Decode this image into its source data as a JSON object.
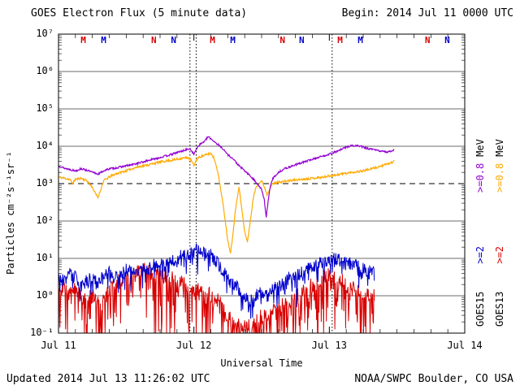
{
  "title": "GOES Electron Flux (5 minute data)",
  "begin_label": "Begin: 2014 Jul 11 0000 UTC",
  "updated_label": "Updated 2014 Jul 13 11:26:02 UTC",
  "source_label": "NOAA/SWPC Boulder, CO USA",
  "x_axis": {
    "label": "Universal Time",
    "ticks": [
      "Jul 11",
      "Jul 12",
      "Jul 13",
      "Jul 14"
    ],
    "hours_span": 72
  },
  "y_axis": {
    "label": "Particles cm⁻²s⁻¹sr⁻¹",
    "tick_labels": [
      "10⁷",
      "10⁶",
      "10⁵",
      "10⁴",
      "10³",
      "10²",
      "10¹",
      "10⁰",
      "10⁻¹"
    ],
    "max_exp": 7,
    "min_exp": -1,
    "threshold_exp": 3
  },
  "right_labels": {
    "inner": {
      "satellite": "GOES15",
      "e2": ">=2",
      "e08": ">=0.8",
      "mev": "MeV",
      "e2_color": "#0000CC",
      "e08_color": "#9400D3"
    },
    "outer": {
      "satellite": "GOES13",
      "e2": ">=2",
      "e08": ">=0.8",
      "mev": "MeV",
      "e2_color": "#D80000",
      "e08_color": "#FFAA00"
    }
  },
  "top_markers": [
    {
      "t": 4.5,
      "label": "M",
      "color": "#D80000"
    },
    {
      "t": 8.1,
      "label": "M",
      "color": "#0000CC"
    },
    {
      "t": 17.0,
      "label": "N",
      "color": "#D80000"
    },
    {
      "t": 20.5,
      "label": "N",
      "color": "#0000CC"
    },
    {
      "t": 27.4,
      "label": "M",
      "color": "#D80000"
    },
    {
      "t": 31.0,
      "label": "M",
      "color": "#0000CC"
    },
    {
      "t": 39.8,
      "label": "N",
      "color": "#D80000"
    },
    {
      "t": 43.2,
      "label": "N",
      "color": "#0000CC"
    },
    {
      "t": 50.0,
      "label": "M",
      "color": "#D80000"
    },
    {
      "t": 53.6,
      "label": "M",
      "color": "#0000CC"
    },
    {
      "t": 65.5,
      "label": "N",
      "color": "#D80000"
    },
    {
      "t": 69.0,
      "label": "N",
      "color": "#0000CC"
    }
  ],
  "chart_data": {
    "type": "line",
    "title": "GOES Electron Flux (5 minute data)",
    "x_unit": "hours from 2014 Jul 11 0000 UTC",
    "y_unit": "particles cm^-2 s^-1 sr^-1",
    "y_scale": "log",
    "ylim_exp": [
      -1,
      7
    ],
    "threshold": 1000,
    "dotted_vlines_hours": [
      23.3,
      24.4,
      48.5
    ],
    "series": [
      {
        "name": "GOES13 >=2 MeV",
        "color": "#D80000",
        "width": 1,
        "seed": 7,
        "noise": {
          "jitter": 0.22,
          "spike_prob": 0.5,
          "spike_depth": 2.4
        },
        "points": [
          [
            0,
            1.5
          ],
          [
            1,
            2
          ],
          [
            2,
            1
          ],
          [
            3,
            1.5
          ],
          [
            4,
            1
          ],
          [
            5,
            0.8
          ],
          [
            6,
            1
          ],
          [
            7,
            0.7
          ],
          [
            8,
            1.2
          ],
          [
            9,
            1.5
          ],
          [
            10,
            2
          ],
          [
            11,
            2.5
          ],
          [
            12,
            3
          ],
          [
            13,
            3.5
          ],
          [
            14,
            4
          ],
          [
            15,
            4.5
          ],
          [
            16,
            5
          ],
          [
            17,
            4.5
          ],
          [
            18,
            4
          ],
          [
            19,
            3.5
          ],
          [
            20,
            3
          ],
          [
            21,
            2.5
          ],
          [
            22,
            2
          ],
          [
            23,
            2
          ],
          [
            24,
            1.5
          ],
          [
            25,
            1.5
          ],
          [
            26,
            1.2
          ],
          [
            27,
            1
          ],
          [
            28,
            0.8
          ],
          [
            29,
            0.5
          ],
          [
            30,
            0.3
          ],
          [
            31,
            0.2
          ],
          [
            32,
            0.15
          ],
          [
            33,
            0.15
          ],
          [
            34,
            0.2
          ],
          [
            35,
            0.2
          ],
          [
            36,
            0.3
          ],
          [
            37,
            0.3
          ],
          [
            38,
            0.4
          ],
          [
            39,
            0.5
          ],
          [
            40,
            0.6
          ],
          [
            41,
            0.8
          ],
          [
            42,
            1
          ],
          [
            43,
            1.2
          ],
          [
            44,
            1.5
          ],
          [
            45,
            2
          ],
          [
            46,
            2.5
          ],
          [
            47,
            3
          ],
          [
            48,
            3.5
          ],
          [
            49,
            3
          ],
          [
            50,
            2.5
          ],
          [
            51,
            2
          ],
          [
            52,
            1.8
          ],
          [
            53,
            1.5
          ],
          [
            54,
            1.2
          ],
          [
            55,
            1
          ],
          [
            56,
            1
          ]
        ]
      },
      {
        "name": "GOES15 >=2 MeV",
        "color": "#0000CC",
        "width": 1,
        "seed": 3,
        "noise": {
          "jitter": 0.18,
          "spike_prob": 0.3,
          "spike_depth": 0.7
        },
        "points": [
          [
            0,
            3
          ],
          [
            1,
            2.5
          ],
          [
            2,
            4
          ],
          [
            3,
            3
          ],
          [
            4,
            2
          ],
          [
            5,
            2.5
          ],
          [
            6,
            3
          ],
          [
            7,
            2
          ],
          [
            8,
            3.5
          ],
          [
            9,
            4
          ],
          [
            10,
            3
          ],
          [
            11,
            4
          ],
          [
            12,
            5
          ],
          [
            13,
            4.5
          ],
          [
            14,
            5
          ],
          [
            15,
            6
          ],
          [
            16,
            5
          ],
          [
            17,
            7
          ],
          [
            18,
            8
          ],
          [
            19,
            7
          ],
          [
            20,
            9
          ],
          [
            21,
            10
          ],
          [
            22,
            12
          ],
          [
            23,
            13
          ],
          [
            24,
            15
          ],
          [
            25,
            17
          ],
          [
            26,
            15
          ],
          [
            27,
            12
          ],
          [
            28,
            8
          ],
          [
            29,
            5
          ],
          [
            30,
            3
          ],
          [
            31,
            2
          ],
          [
            32,
            1.5
          ],
          [
            33,
            1
          ],
          [
            34,
            0.8
          ],
          [
            35,
            1
          ],
          [
            36,
            1.2
          ],
          [
            37,
            1
          ],
          [
            38,
            1.5
          ],
          [
            39,
            2
          ],
          [
            40,
            2.5
          ],
          [
            41,
            3
          ],
          [
            42,
            3.5
          ],
          [
            43,
            4
          ],
          [
            44,
            5
          ],
          [
            45,
            6
          ],
          [
            46,
            7
          ],
          [
            47,
            8
          ],
          [
            48,
            9
          ],
          [
            49,
            10
          ],
          [
            50,
            9
          ],
          [
            51,
            8
          ],
          [
            52,
            7
          ],
          [
            53,
            6
          ],
          [
            54,
            5
          ],
          [
            55,
            4.5
          ],
          [
            56,
            4
          ]
        ]
      },
      {
        "name": "GOES13 >=0.8 MeV",
        "color": "#FFAA00",
        "width": 1.2,
        "seed": 11,
        "noise": {
          "jitter": 0.03,
          "spike_prob": 0,
          "spike_depth": 0
        },
        "points": [
          [
            0,
            1500
          ],
          [
            1,
            1400
          ],
          [
            2,
            1300
          ],
          [
            2.5,
            1000
          ],
          [
            3,
            1300
          ],
          [
            4,
            1400
          ],
          [
            5,
            1200
          ],
          [
            6,
            800
          ],
          [
            6.5,
            550
          ],
          [
            7,
            430
          ],
          [
            7.5,
            700
          ],
          [
            8,
            1200
          ],
          [
            9,
            1500
          ],
          [
            10,
            1800
          ],
          [
            11,
            2000
          ],
          [
            12,
            2200
          ],
          [
            13,
            2500
          ],
          [
            14,
            2800
          ],
          [
            15,
            3000
          ],
          [
            16,
            3200
          ],
          [
            17,
            3500
          ],
          [
            18,
            3800
          ],
          [
            19,
            4000
          ],
          [
            20,
            4200
          ],
          [
            21,
            4500
          ],
          [
            22,
            4800
          ],
          [
            23,
            5000
          ],
          [
            23.5,
            4200
          ],
          [
            24,
            3000
          ],
          [
            24.5,
            4500
          ],
          [
            25,
            5200
          ],
          [
            26,
            5800
          ],
          [
            27,
            6500
          ],
          [
            27.5,
            5000
          ],
          [
            28,
            3000
          ],
          [
            28.5,
            1200
          ],
          [
            29,
            400
          ],
          [
            29.5,
            120
          ],
          [
            30,
            30
          ],
          [
            30.5,
            14
          ],
          [
            31,
            60
          ],
          [
            31.5,
            300
          ],
          [
            32,
            800
          ],
          [
            32.5,
            200
          ],
          [
            33,
            50
          ],
          [
            33.5,
            28
          ],
          [
            34,
            100
          ],
          [
            34.5,
            400
          ],
          [
            35,
            800
          ],
          [
            35.5,
            1000
          ],
          [
            36,
            1200
          ],
          [
            36.5,
            800
          ],
          [
            37,
            500
          ],
          [
            37.5,
            800
          ],
          [
            38,
            1000
          ],
          [
            39,
            1100
          ],
          [
            40,
            1150
          ],
          [
            41,
            1200
          ],
          [
            42,
            1250
          ],
          [
            43,
            1300
          ],
          [
            44,
            1350
          ],
          [
            45,
            1400
          ],
          [
            46,
            1450
          ],
          [
            47,
            1500
          ],
          [
            48,
            1600
          ],
          [
            49,
            1700
          ],
          [
            50,
            1800
          ],
          [
            51,
            1900
          ],
          [
            52,
            2000
          ],
          [
            53,
            2100
          ],
          [
            54,
            2200
          ],
          [
            55,
            2400
          ],
          [
            56,
            2600
          ],
          [
            57,
            2900
          ],
          [
            58,
            3200
          ],
          [
            59,
            3600
          ],
          [
            59.5,
            4000
          ]
        ]
      },
      {
        "name": "GOES15 >=0.8 MeV",
        "color": "#9400D3",
        "width": 1.2,
        "seed": 13,
        "noise": {
          "jitter": 0.025,
          "spike_prob": 0,
          "spike_depth": 0
        },
        "points": [
          [
            0,
            3000
          ],
          [
            1,
            2600
          ],
          [
            2,
            2400
          ],
          [
            3,
            2200
          ],
          [
            4,
            2500
          ],
          [
            5,
            2300
          ],
          [
            6,
            2000
          ],
          [
            7,
            1800
          ],
          [
            8,
            2200
          ],
          [
            9,
            2500
          ],
          [
            10,
            2600
          ],
          [
            11,
            2800
          ],
          [
            12,
            3000
          ],
          [
            13,
            3200
          ],
          [
            14,
            3500
          ],
          [
            15,
            3800
          ],
          [
            16,
            4200
          ],
          [
            17,
            4600
          ],
          [
            18,
            5000
          ],
          [
            19,
            5500
          ],
          [
            20,
            6000
          ],
          [
            21,
            6800
          ],
          [
            22,
            7500
          ],
          [
            23,
            8500
          ],
          [
            23.5,
            8000
          ],
          [
            24,
            6000
          ],
          [
            24.5,
            9000
          ],
          [
            25,
            11000
          ],
          [
            26,
            14000
          ],
          [
            26.5,
            18000
          ],
          [
            27,
            16000
          ],
          [
            28,
            12000
          ],
          [
            29,
            9000
          ],
          [
            30,
            6000
          ],
          [
            31,
            4500
          ],
          [
            32,
            3000
          ],
          [
            33,
            2200
          ],
          [
            34,
            1600
          ],
          [
            35,
            1100
          ],
          [
            36,
            700
          ],
          [
            36.5,
            350
          ],
          [
            36.8,
            120
          ],
          [
            37.2,
            400
          ],
          [
            37.6,
            900
          ],
          [
            38,
            1400
          ],
          [
            39,
            2000
          ],
          [
            40,
            2500
          ],
          [
            41,
            2800
          ],
          [
            42,
            3200
          ],
          [
            43,
            3600
          ],
          [
            44,
            4000
          ],
          [
            45,
            4500
          ],
          [
            46,
            5000
          ],
          [
            47,
            5500
          ],
          [
            48,
            6200
          ],
          [
            49,
            7000
          ],
          [
            50,
            8000
          ],
          [
            51,
            9500
          ],
          [
            52,
            10500
          ],
          [
            52.5,
            10000
          ],
          [
            53,
            10500
          ],
          [
            54,
            9500
          ],
          [
            55,
            8500
          ],
          [
            56,
            8000
          ],
          [
            57,
            7500
          ],
          [
            58,
            7000
          ],
          [
            59,
            7500
          ],
          [
            59.5,
            8200
          ]
        ]
      }
    ]
  }
}
